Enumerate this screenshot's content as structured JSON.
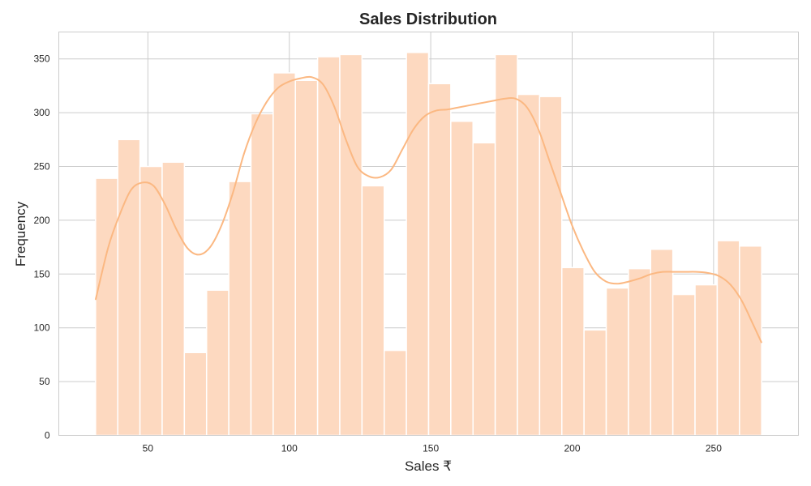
{
  "chart_data": {
    "type": "bar",
    "title": "Sales Distribution",
    "xlabel": "Sales ₹",
    "ylabel": "Frequency",
    "xlim": [
      18.5,
      280
    ],
    "ylim": [
      0,
      375
    ],
    "xticks": [
      50,
      100,
      150,
      200,
      250
    ],
    "yticks": [
      0,
      50,
      100,
      150,
      200,
      250,
      300,
      350
    ],
    "grid": true,
    "bin_edges": [
      31.5,
      39.35,
      47.2,
      55.05,
      62.9,
      70.75,
      78.6,
      86.45,
      94.3,
      102.15,
      110.0,
      117.85,
      125.7,
      133.55,
      141.4,
      149.25,
      157.1,
      164.95,
      172.8,
      180.65,
      188.5,
      196.35,
      204.2,
      212.05,
      219.9,
      227.75,
      235.6,
      243.45,
      251.3,
      259.15,
      267.0
    ],
    "values": [
      239,
      275,
      250,
      254,
      77,
      135,
      236,
      299,
      337,
      330,
      352,
      354,
      232,
      79,
      356,
      327,
      292,
      272,
      354,
      317,
      315,
      156,
      98,
      137,
      155,
      173,
      131,
      140,
      181,
      176
    ],
    "kde": {
      "x": [
        31.5,
        36,
        40,
        44,
        48,
        52,
        56,
        60,
        64,
        68,
        72,
        76,
        80,
        84,
        88,
        92,
        96,
        100,
        104,
        108,
        112,
        116,
        120,
        124,
        128,
        132,
        136,
        140,
        144,
        148,
        152,
        156,
        160,
        164,
        168,
        172,
        176,
        180,
        184,
        188,
        192,
        196,
        200,
        204,
        208,
        212,
        216,
        220,
        224,
        228,
        232,
        236,
        240,
        244,
        248,
        252,
        256,
        260,
        264,
        267
      ],
      "y": [
        126,
        175,
        205,
        228,
        235,
        232,
        215,
        192,
        174,
        168,
        175,
        195,
        225,
        262,
        290,
        310,
        323,
        329,
        332,
        333,
        326,
        305,
        275,
        250,
        241,
        240,
        247,
        266,
        285,
        297,
        302,
        303,
        305,
        307,
        309,
        311,
        313,
        313,
        305,
        285,
        255,
        225,
        195,
        171,
        152,
        143,
        141,
        143,
        146,
        150,
        152,
        152,
        152,
        152,
        151,
        148,
        140,
        125,
        103,
        86
      ]
    },
    "bar_color": "#fdd9c0",
    "kde_color": "#fbb882"
  }
}
